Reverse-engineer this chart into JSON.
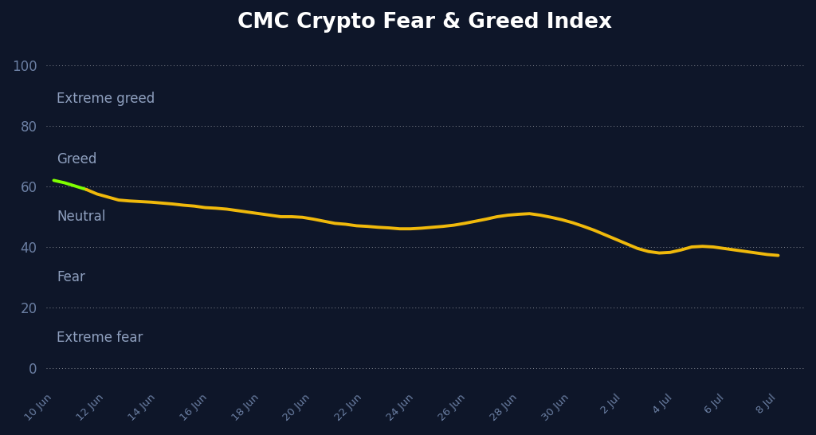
{
  "title": "CMC Crypto Fear & Greed Index",
  "background_color": "#0e1629",
  "line_color": "#f0b90b",
  "line_color_start": "#7fff00",
  "text_color": "#6b7fa3",
  "label_color": "#8fa0bf",
  "title_color": "#ffffff",
  "grid_color": "#ffffff",
  "yticks": [
    0,
    20,
    40,
    60,
    80,
    100
  ],
  "ylim": [
    -5,
    108
  ],
  "zone_labels": [
    {
      "text": "Extreme greed",
      "y": 89
    },
    {
      "text": "Greed",
      "y": 69
    },
    {
      "text": "Neutral",
      "y": 50
    },
    {
      "text": "Fear",
      "y": 30
    },
    {
      "text": "Extreme fear",
      "y": 10
    }
  ],
  "x_labels": [
    "10 Jun",
    "12 Jun",
    "14 Jun",
    "16 Jun",
    "18 Jun",
    "20 Jun",
    "22 Jun",
    "24 Jun",
    "26 Jun",
    "28 Jun",
    "30 Jun",
    "2 Jul",
    "4 Jul",
    "6 Jul",
    "8 Jul"
  ],
  "x_values": [
    0,
    2,
    4,
    6,
    8,
    10,
    12,
    14,
    16,
    18,
    20,
    22,
    24,
    26,
    28
  ],
  "y_values": [
    62,
    61.2,
    60.1,
    59.0,
    57.5,
    56.5,
    55.5,
    55.2,
    55.0,
    54.8,
    54.5,
    54.2,
    53.8,
    53.5,
    53.0,
    52.8,
    52.5,
    52.0,
    51.5,
    51.0,
    50.5,
    50.0,
    50.0,
    49.8,
    49.2,
    48.5,
    47.8,
    47.5,
    47.0,
    46.8,
    46.5,
    46.3,
    46.0,
    46.0,
    46.2,
    46.5,
    46.8,
    47.2,
    47.8,
    48.5,
    49.2,
    50.0,
    50.5,
    50.8,
    51.0,
    50.5,
    49.8,
    49.0,
    48.0,
    46.8,
    45.5,
    44.0,
    42.5,
    41.0,
    39.5,
    38.5,
    38.0,
    38.2,
    39.0,
    40.0,
    40.2,
    40.0,
    39.5,
    39.0,
    38.5,
    38.0,
    37.5,
    37.2
  ]
}
